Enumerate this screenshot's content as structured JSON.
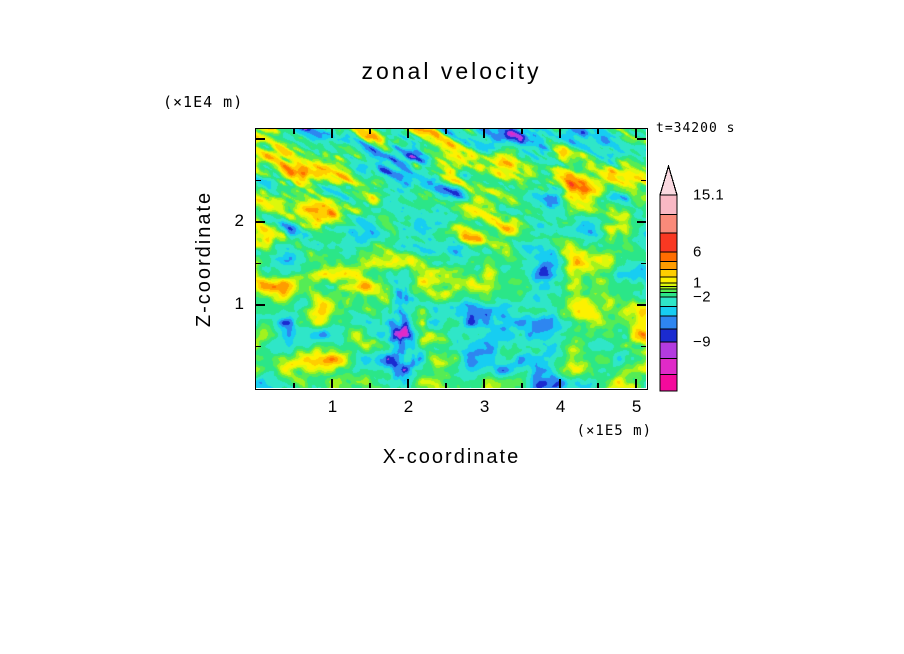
{
  "chart_data": {
    "type": "heatmap",
    "title": "zonal velocity",
    "xlabel": "X-coordinate",
    "zlabel": "Z-coordinate",
    "x_unit_label": "(×1E5 m)",
    "z_unit_label": "(×1E4 m)",
    "time_label": "t=34200 s",
    "x_range": [
      0,
      5.13
    ],
    "z_range": [
      0,
      3.12
    ],
    "x_ticks": [
      1,
      2,
      3,
      4,
      5
    ],
    "x_minor_step": 0.5,
    "z_ticks": [
      1,
      2
    ],
    "z_minor_step": 0.5,
    "field_summary": "Turbulent 2-D cross-section of zonal velocity. Background is mostly mid-range green/yellow; diagonal elongated streaks of positive (orange/red) and negative (dark blue) velocity run from upper-left toward mid-right; finer blobby structure and a narrow intense vertical patch (with small magenta/violet extremes) near x≈1.9E5 m in the lower half. Exact gridded values are not readable from the plot.",
    "colorbar": {
      "edges": [
        -15,
        -13,
        -11,
        -9,
        -7,
        -5,
        -3.5,
        -2,
        -1,
        -0.3,
        0.3,
        1,
        2,
        3.2,
        4.5,
        6,
        9,
        12,
        15.1
      ],
      "colors": [
        "#F40A9C",
        "#E02AC8",
        "#B33BE0",
        "#1B2BD0",
        "#2E86F0",
        "#17CDF2",
        "#2FE6C8",
        "#2BE688",
        "#55EC55",
        "#A2F21E",
        "#DCF80C",
        "#FDF100",
        "#FFCE00",
        "#FF9C00",
        "#FF6D00",
        "#F93822",
        "#FA8A7A",
        "#F9B8C4"
      ],
      "tip_color": "#FAD9E0",
      "tick_labels": [
        {
          "value": 15.1,
          "label": "15.1"
        },
        {
          "value": 6,
          "label": "6"
        },
        {
          "value": 1,
          "label": "1"
        },
        {
          "value": -2,
          "label": "−2"
        },
        {
          "value": -9,
          "label": "−9"
        }
      ],
      "value_to_fraction_anchors": [
        [
          15.1,
          0
        ],
        [
          6,
          0.29
        ],
        [
          1,
          0.45
        ],
        [
          -2,
          0.52
        ],
        [
          -9,
          0.75
        ],
        [
          -15,
          1
        ]
      ]
    }
  }
}
